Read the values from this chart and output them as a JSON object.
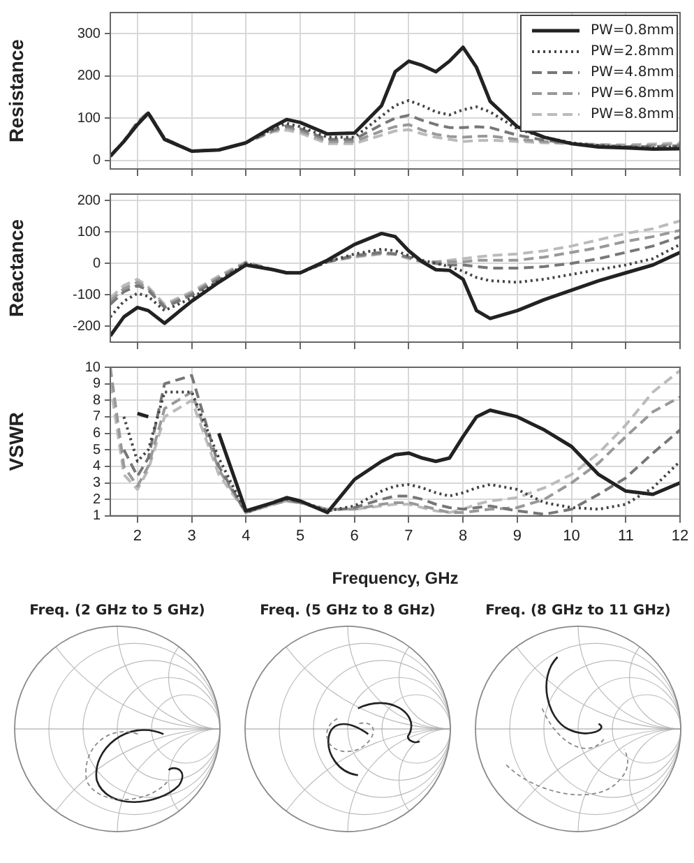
{
  "chart_data": [
    {
      "type": "line",
      "ylabel": "Resistance",
      "x": [
        1.5,
        1.75,
        2,
        2.2,
        2.5,
        3,
        3.5,
        4,
        4.5,
        4.75,
        5,
        5.5,
        6,
        6.5,
        6.75,
        7,
        7.25,
        7.5,
        7.75,
        8,
        8.25,
        8.5,
        9,
        9.5,
        10,
        10.5,
        11,
        11.5,
        12
      ],
      "xlim": [
        1.5,
        12
      ],
      "xticks": [
        2,
        3,
        4,
        5,
        6,
        7,
        8,
        9,
        10,
        11,
        12
      ],
      "ylim": [
        -20,
        350
      ],
      "yticks": [
        0,
        100,
        200,
        300
      ],
      "tick_labels": "y",
      "grid": true,
      "legend": "top right",
      "marker": "none",
      "series": [
        {
          "name": "PW=0.8mm",
          "color": "#222222",
          "line_style": "solid",
          "values": [
            10,
            45,
            85,
            112,
            50,
            22,
            25,
            42,
            80,
            97,
            90,
            63,
            65,
            130,
            210,
            235,
            225,
            210,
            235,
            268,
            220,
            140,
            80,
            55,
            40,
            32,
            30,
            27,
            28
          ]
        },
        {
          "name": "PW=2.8mm",
          "color": "#444444",
          "line_style": "dotted",
          "values": [
            12,
            45,
            88,
            112,
            52,
            22,
            25,
            42,
            75,
            88,
            80,
            55,
            55,
            105,
            130,
            142,
            130,
            115,
            108,
            120,
            127,
            115,
            75,
            55,
            42,
            35,
            32,
            30,
            32
          ]
        },
        {
          "name": "PW=4.8mm",
          "color": "#777777",
          "line_style": "dashed",
          "values": [
            12,
            45,
            90,
            113,
            52,
            22,
            25,
            42,
            72,
            82,
            75,
            50,
            50,
            85,
            100,
            107,
            95,
            85,
            78,
            78,
            80,
            78,
            60,
            48,
            40,
            36,
            33,
            33,
            35
          ]
        },
        {
          "name": "PW=6.8mm",
          "color": "#999999",
          "line_style": "dashed",
          "values": [
            12,
            45,
            90,
            113,
            52,
            22,
            25,
            42,
            70,
            78,
            70,
            45,
            45,
            70,
            80,
            85,
            72,
            62,
            57,
            55,
            57,
            58,
            50,
            45,
            40,
            37,
            35,
            36,
            38
          ]
        },
        {
          "name": "PW=8.8mm",
          "color": "#bbbbbb",
          "line_style": "dashed",
          "values": [
            12,
            46,
            92,
            115,
            52,
            22,
            25,
            42,
            68,
            72,
            65,
            40,
            40,
            60,
            70,
            73,
            63,
            55,
            50,
            45,
            47,
            48,
            45,
            42,
            40,
            38,
            37,
            39,
            42
          ]
        }
      ]
    },
    {
      "type": "line",
      "ylabel": "Reactance",
      "x": [
        1.5,
        1.75,
        2,
        2.2,
        2.5,
        3,
        3.5,
        4,
        4.5,
        4.75,
        5,
        5.5,
        6,
        6.5,
        6.75,
        7,
        7.25,
        7.5,
        7.75,
        8,
        8.25,
        8.5,
        9,
        9.5,
        10,
        10.5,
        11,
        11.5,
        12
      ],
      "xlim": [
        1.5,
        12
      ],
      "xticks": [
        2,
        3,
        4,
        5,
        6,
        7,
        8,
        9,
        10,
        11,
        12
      ],
      "ylim": [
        -250,
        220
      ],
      "yticks": [
        -200,
        -100,
        0,
        100,
        200
      ],
      "tick_labels": "y",
      "grid": true,
      "marker": "none",
      "series": [
        {
          "color": "#222222",
          "line_style": "solid",
          "values": [
            -230,
            -170,
            -140,
            -150,
            -190,
            -120,
            -60,
            -5,
            -20,
            -30,
            -30,
            10,
            60,
            95,
            85,
            40,
            5,
            -20,
            -22,
            -50,
            -150,
            -175,
            -150,
            -115,
            -85,
            -55,
            -30,
            -5,
            35
          ]
        },
        {
          "color": "#444444",
          "line_style": "dotted",
          "values": [
            -170,
            -120,
            -95,
            -105,
            -150,
            -110,
            -55,
            0,
            -20,
            -30,
            -30,
            5,
            30,
            45,
            40,
            25,
            10,
            0,
            -10,
            -25,
            -45,
            -55,
            -60,
            -50,
            -35,
            -20,
            -5,
            15,
            60
          ]
        },
        {
          "color": "#777777",
          "line_style": "dashed",
          "values": [
            -130,
            -90,
            -70,
            -85,
            -140,
            -100,
            -50,
            0,
            -20,
            -30,
            -30,
            5,
            25,
            35,
            30,
            20,
            5,
            0,
            -5,
            -5,
            -10,
            -15,
            -15,
            -10,
            0,
            15,
            35,
            55,
            85
          ]
        },
        {
          "color": "#999999",
          "line_style": "dashed",
          "values": [
            -120,
            -80,
            -60,
            -80,
            -135,
            -95,
            -45,
            3,
            -20,
            -30,
            -30,
            5,
            22,
            32,
            30,
            18,
            5,
            5,
            5,
            5,
            10,
            10,
            10,
            20,
            35,
            50,
            70,
            85,
            105
          ]
        },
        {
          "color": "#bbbbbb",
          "line_style": "dashed",
          "values": [
            -110,
            -70,
            -50,
            -75,
            -130,
            -90,
            -40,
            5,
            -20,
            -30,
            -30,
            5,
            20,
            30,
            28,
            15,
            5,
            5,
            10,
            15,
            20,
            25,
            30,
            40,
            55,
            75,
            95,
            110,
            135
          ]
        }
      ]
    },
    {
      "type": "line",
      "ylabel": "VSWR",
      "xlabel": "Frequency, GHz",
      "x": [
        1.5,
        1.75,
        2,
        2.2,
        2.5,
        3,
        3.5,
        4,
        4.5,
        4.75,
        5,
        5.5,
        6,
        6.5,
        6.75,
        7,
        7.25,
        7.5,
        7.75,
        8,
        8.25,
        8.5,
        9,
        9.5,
        10,
        10.5,
        11,
        11.5,
        12
      ],
      "xlim": [
        1.5,
        12
      ],
      "xticks": [
        2,
        3,
        4,
        5,
        6,
        7,
        8,
        9,
        10,
        11,
        12
      ],
      "ylim": [
        1,
        10
      ],
      "yticks": [
        1,
        2,
        3,
        4,
        5,
        6,
        7,
        8,
        9,
        10
      ],
      "grid": true,
      "marker": "none",
      "series": [
        {
          "color": "#222222",
          "line_style": "solid",
          "values": [
            null,
            null,
            7.2,
            7,
            null,
            null,
            6,
            1.3,
            1.8,
            2.1,
            1.9,
            1.2,
            3.2,
            4.3,
            4.7,
            4.8,
            4.5,
            4.3,
            4.5,
            5.8,
            7,
            7.4,
            7,
            6.2,
            5.2,
            3.5,
            2.5,
            2.3,
            3
          ]
        },
        {
          "color": "#444444",
          "line_style": "dotted",
          "values": [
            null,
            7,
            4.3,
            5,
            8.5,
            8.5,
            4.5,
            1.2,
            1.8,
            2,
            1.9,
            1.3,
            1.6,
            2.5,
            2.8,
            2.9,
            2.7,
            2.4,
            2.2,
            2.4,
            2.7,
            2.9,
            2.6,
            1.8,
            1.5,
            1.4,
            1.7,
            2.7,
            4.3
          ]
        },
        {
          "color": "#777777",
          "line_style": "dashed",
          "values": [
            null,
            5,
            3.4,
            4.5,
            9,
            9.5,
            4,
            1.2,
            1.8,
            2,
            1.8,
            1.3,
            1.5,
            2,
            2.2,
            2.2,
            2,
            1.7,
            1.5,
            1.4,
            1.5,
            1.6,
            1.3,
            1.1,
            1.4,
            2.3,
            3.3,
            4.8,
            6.2
          ]
        },
        {
          "color": "#999999",
          "line_style": "dashed",
          "values": [
            10,
            4,
            2.8,
            4,
            7.5,
            8.5,
            3.8,
            1.2,
            1.7,
            1.9,
            1.8,
            1.4,
            1.4,
            1.7,
            1.8,
            1.8,
            1.6,
            1.4,
            1.2,
            1.2,
            1.3,
            1.4,
            1.5,
            2,
            3,
            4.2,
            5.8,
            7.3,
            8.2
          ]
        },
        {
          "color": "#bbbbbb",
          "line_style": "dashed",
          "values": [
            9,
            3.5,
            2.6,
            3.8,
            7,
            8,
            3.5,
            1.2,
            1.7,
            1.9,
            1.8,
            1.4,
            1.4,
            1.6,
            1.7,
            1.7,
            1.5,
            1.3,
            1.2,
            1.4,
            1.7,
            1.9,
            2.1,
            2.7,
            3.5,
            4.8,
            6.5,
            8.5,
            9.8
          ]
        }
      ]
    },
    {
      "type": "other",
      "title": "Freq. (2 GHz to 5 GHz)"
    },
    {
      "type": "other",
      "title": "Freq. (5 GHz to 8 GHz)"
    },
    {
      "type": "other",
      "title": "Freq. (8 GHz to 11 GHz)"
    }
  ]
}
